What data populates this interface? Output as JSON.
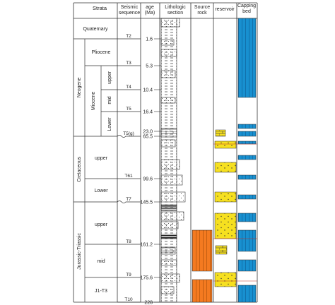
{
  "headers": {
    "strata": "Strata",
    "seismic": [
      "Seismic",
      "sequence"
    ],
    "age": [
      "age",
      "(Ma)"
    ],
    "litho": [
      "Lithologic",
      "section"
    ],
    "source": [
      "Source",
      "rock"
    ],
    "reservoir": "reservoir",
    "capping": [
      "Capping",
      "bed"
    ]
  },
  "units": {
    "quaternary": "Quaternary",
    "neogene": "Neogene",
    "pliocene": "Pliocene",
    "miocene": "Miocene",
    "mio_upper": "upper",
    "mio_mid": "mid",
    "mio_lower": "Lower",
    "cretaceous": "Cretaceous",
    "cret_upper": "upper",
    "cret_lower": "Lower",
    "jurassic_triassic": "Jurassic-Triassic",
    "jt_upper": "upper",
    "jt_mid": "mid",
    "jt_lower_sub": "J1-T3"
  },
  "seismic": [
    "T2",
    "T3",
    "T4",
    "T5",
    "T5(g)",
    "T61",
    "T7",
    "T8",
    "T9",
    "T10"
  ],
  "ages": [
    "1.6",
    "5.3",
    "10.4",
    "16.4",
    "23.0",
    "65.5",
    "99.6",
    "145.5",
    "161.2",
    "175.6",
    "228"
  ],
  "colors": {
    "line": "#333333",
    "source": "#f47a20",
    "reservoir": "#f6e020",
    "capping": "#1890d0"
  },
  "lithology_legend": [
    "mudstone",
    "sandstone",
    "limestone",
    "coal"
  ]
}
